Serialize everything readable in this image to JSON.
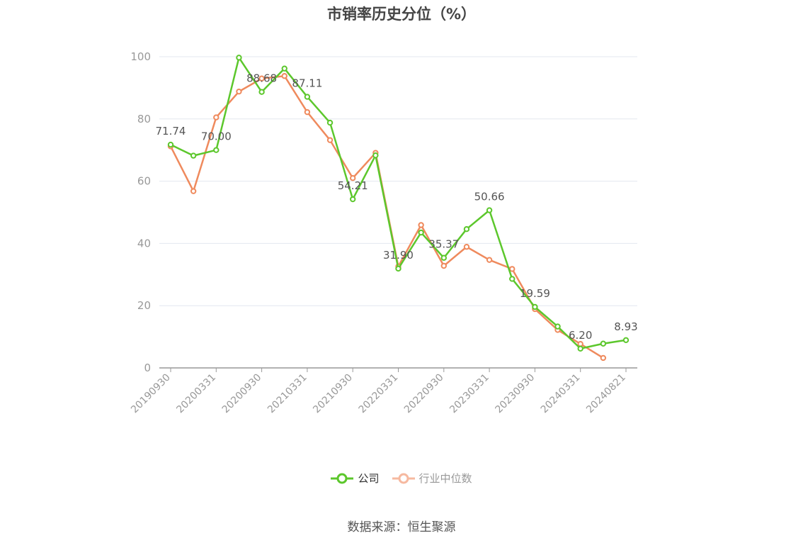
{
  "chart_data": {
    "type": "line",
    "title": "市销率历史分位（%）",
    "x": [
      "20190930",
      "20191231",
      "20200331",
      "20200630",
      "20200930",
      "20201231",
      "20210331",
      "20210630",
      "20210930",
      "20211231",
      "20220331",
      "20220630",
      "20220930",
      "20221231",
      "20230331",
      "20230630",
      "20230930",
      "20231231",
      "20240331",
      "20240630",
      "20240821"
    ],
    "tick_labels": [
      "20190930",
      "20200331",
      "20200930",
      "20210331",
      "20210930",
      "20220331",
      "20220930",
      "20230331",
      "20230930",
      "20240331",
      "20240821"
    ],
    "ylim": [
      0,
      100
    ],
    "yticks": [
      0,
      20,
      40,
      60,
      80,
      100
    ],
    "grid": true,
    "legend_position": "bottom",
    "series": [
      {
        "name": "公司",
        "color": "#5cc72c",
        "values": [
          71.74,
          68.2,
          70.0,
          99.7,
          88.68,
          96.2,
          87.11,
          78.8,
          54.21,
          68.3,
          31.9,
          43.5,
          35.37,
          44.6,
          50.66,
          28.6,
          19.59,
          13.3,
          6.2,
          7.8,
          8.93
        ],
        "labels": [
          "71.74",
          null,
          "70.00",
          null,
          "88.68",
          null,
          "87.11",
          null,
          "54.21",
          null,
          "31.90",
          null,
          "35.37",
          null,
          "50.66",
          null,
          "19.59",
          null,
          "6.20",
          null,
          "8.93"
        ]
      },
      {
        "name": "行业中位数",
        "color": "#ef8a5d",
        "values": [
          71.2,
          56.8,
          80.5,
          88.8,
          93.0,
          93.8,
          82.2,
          73.2,
          61.0,
          69.1,
          32.6,
          45.9,
          32.8,
          38.9,
          34.7,
          31.8,
          18.9,
          12.2,
          7.7,
          3.2,
          null
        ]
      }
    ]
  },
  "source_text": "数据来源：恒生聚源"
}
